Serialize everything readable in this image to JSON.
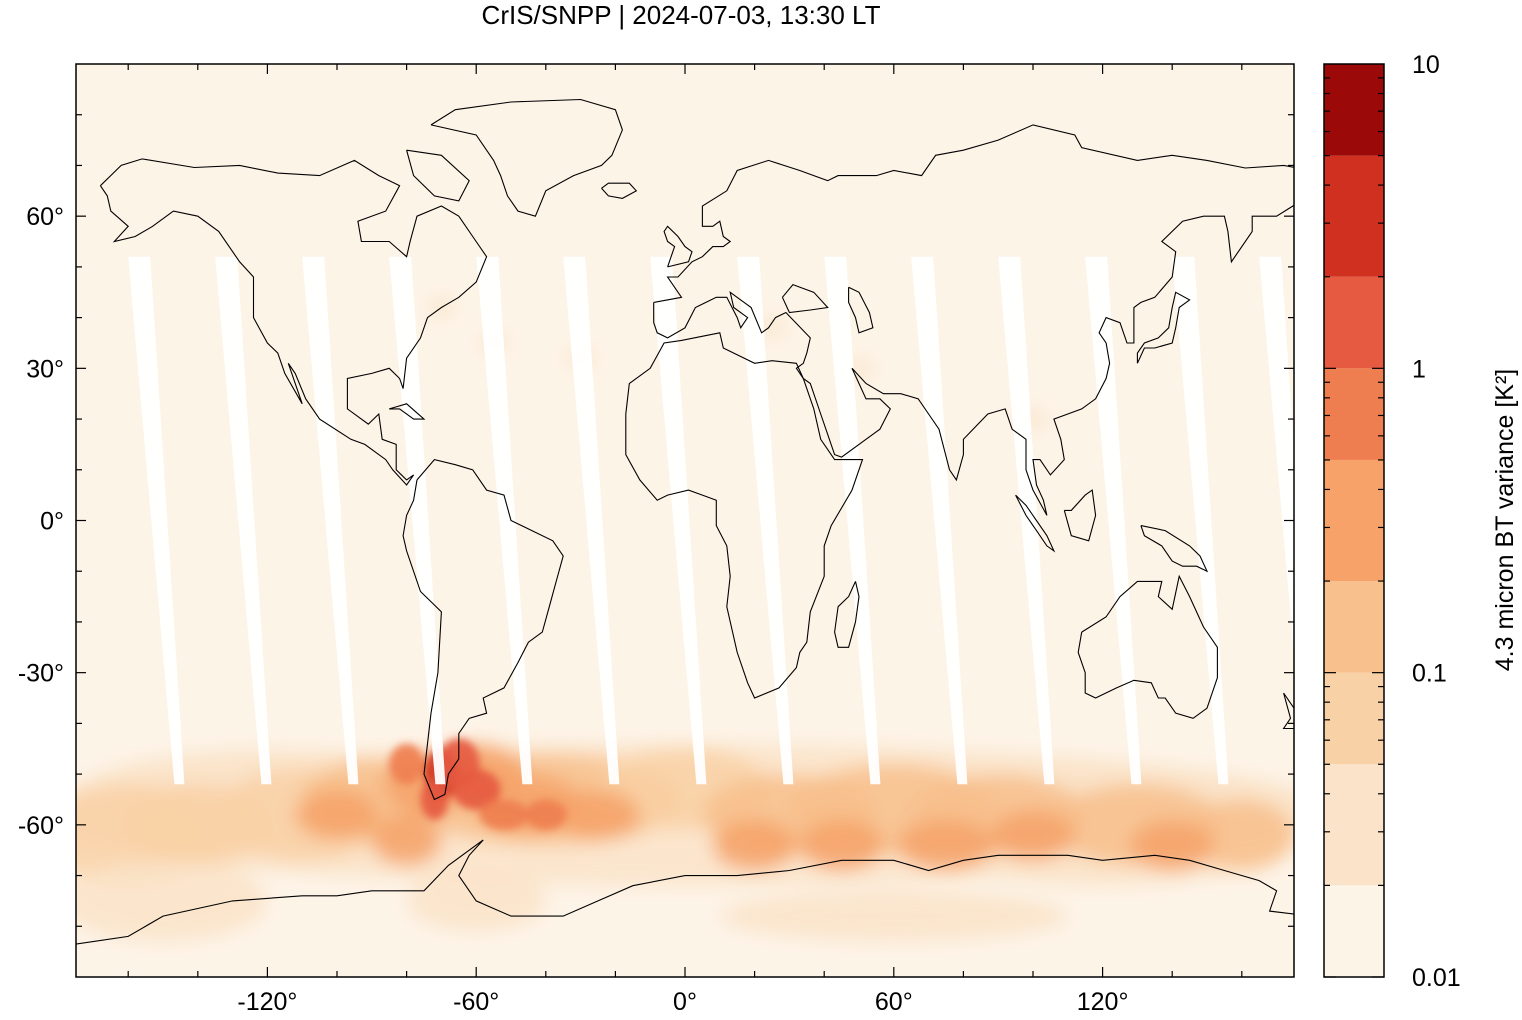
{
  "title": "CrIS/SNPP | 2024-07-03, 13:30 LT",
  "map": {
    "lon_range": [
      -175,
      175
    ],
    "lat_range": [
      -90,
      90
    ],
    "x_ticks": [
      -120,
      -60,
      0,
      60,
      120
    ],
    "x_tick_labels": [
      "-120°",
      "-60°",
      "0°",
      "60°",
      "120°"
    ],
    "y_ticks": [
      60,
      30,
      0,
      -30,
      -60
    ],
    "y_tick_labels": [
      "60°",
      "30°",
      "0°",
      "-30°",
      "-60°"
    ],
    "background_color": "#fdf4e8",
    "coastline_color": "#000000",
    "gap_color": "#ffffff"
  },
  "colorbar": {
    "label": "4.3 micron BT variance [K²]",
    "scale": "log",
    "range": [
      0.01,
      10
    ],
    "tick_values": [
      10,
      1,
      0.1,
      0.01
    ],
    "tick_labels": [
      "10",
      "1",
      "0.1",
      "0.01"
    ],
    "levels": [
      0.01,
      0.02,
      0.05,
      0.1,
      0.2,
      0.5,
      1,
      2,
      5,
      10
    ],
    "colors": [
      "#fdf4e8",
      "#fae3c8",
      "#f9d1a6",
      "#f8c08c",
      "#f6a268",
      "#ee7e4f",
      "#e55a40",
      "#cf3020",
      "#9b0a08"
    ]
  }
}
